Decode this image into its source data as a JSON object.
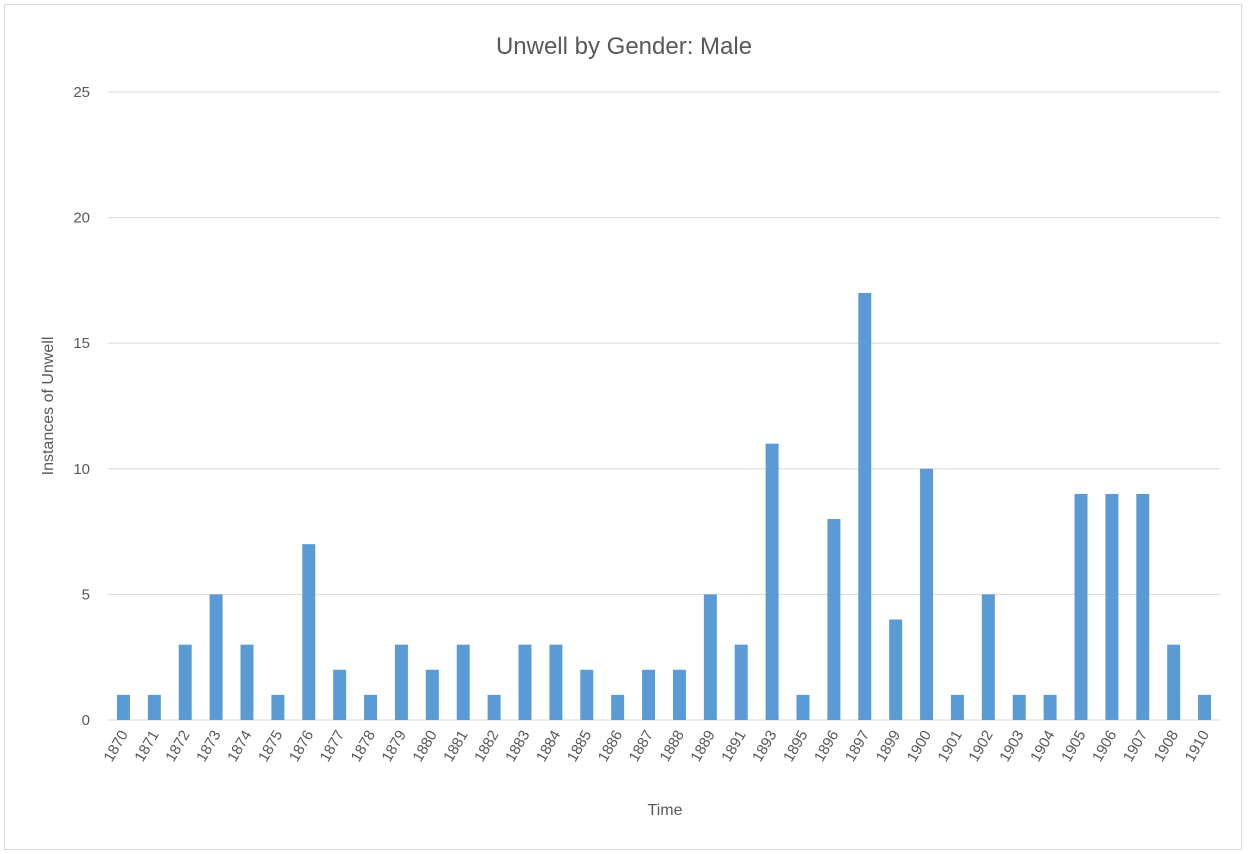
{
  "chart_data": {
    "type": "bar",
    "title": "Unwell by Gender: Male",
    "xlabel": "Time",
    "ylabel": "Instances of Unwell",
    "ylim": [
      0,
      25
    ],
    "yticks": [
      0,
      5,
      10,
      15,
      20,
      25
    ],
    "grid": true,
    "legend": "none",
    "bar_color": "#5b9bd5",
    "categories": [
      "1870",
      "1871",
      "1872",
      "1873",
      "1874",
      "1875",
      "1876",
      "1877",
      "1878",
      "1879",
      "1880",
      "1881",
      "1882",
      "1883",
      "1884",
      "1885",
      "1886",
      "1887",
      "1888",
      "1889",
      "1891",
      "1893",
      "1895",
      "1896",
      "1897",
      "1899",
      "1900",
      "1901",
      "1902",
      "1903",
      "1904",
      "1905",
      "1906",
      "1907",
      "1908",
      "1910"
    ],
    "values": [
      1,
      1,
      3,
      5,
      3,
      1,
      7,
      2,
      1,
      3,
      2,
      3,
      1,
      3,
      3,
      2,
      1,
      2,
      2,
      5,
      3,
      11,
      1,
      8,
      17,
      4,
      10,
      1,
      5,
      1,
      1,
      9,
      9,
      9,
      3,
      1
    ]
  }
}
